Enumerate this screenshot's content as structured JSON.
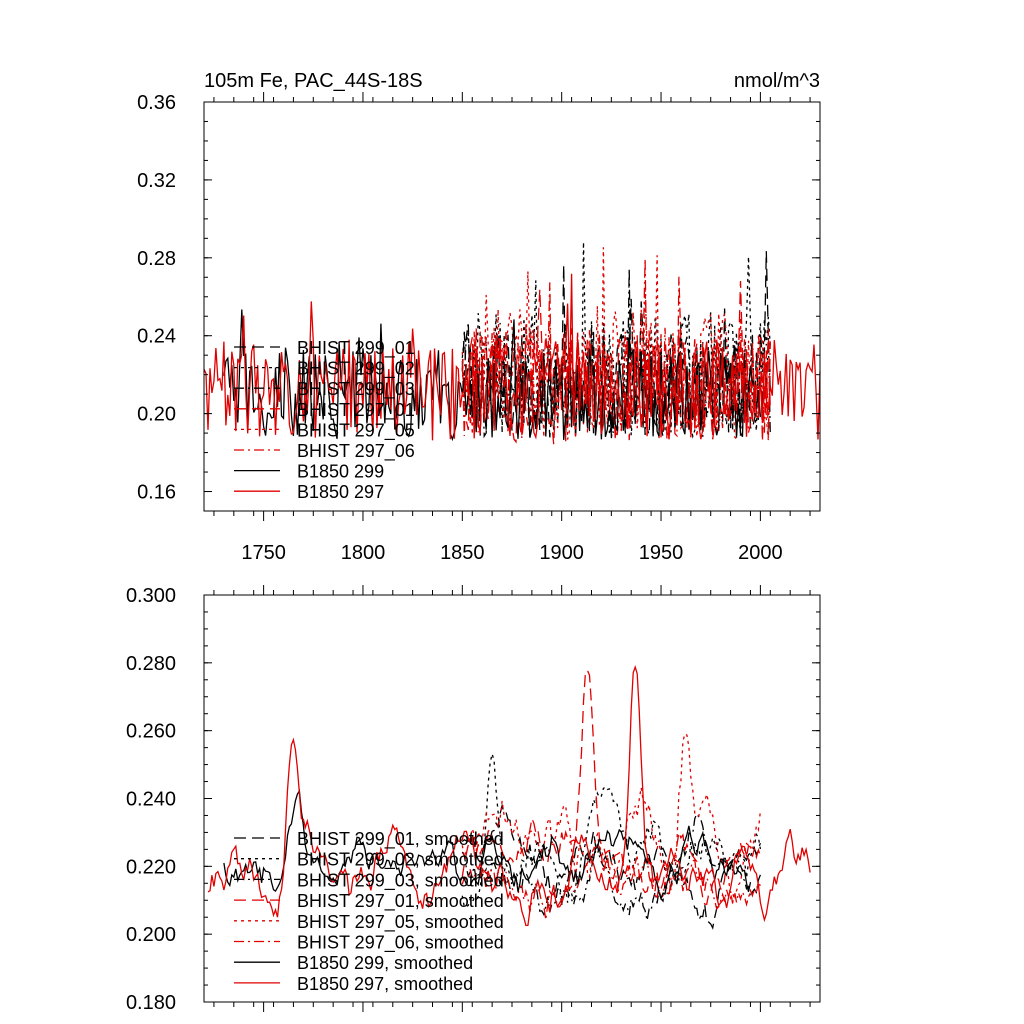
{
  "chart_data": [
    {
      "type": "line",
      "title": "105m Fe, PAC_44S-18S",
      "units": "nmol/m^3",
      "xlim": [
        1720,
        2030
      ],
      "ylim": [
        0.15,
        0.36
      ],
      "yticks": [
        "0.16",
        "0.20",
        "0.24",
        "0.28",
        "0.32",
        "0.36"
      ],
      "ytick_values": [
        0.16,
        0.2,
        0.24,
        0.28,
        0.32,
        0.36
      ],
      "xticks": [
        "1750",
        "1800",
        "1850",
        "1900",
        "1950",
        "2000"
      ],
      "xtick_values": [
        1750,
        1800,
        1850,
        1900,
        1950,
        2000
      ],
      "series": [
        {
          "name": "BHIST 299_01",
          "color": "#000000",
          "dash": "long-dash",
          "x_start": 1850,
          "x_end": 2005,
          "mean": 0.215,
          "amp": 0.028
        },
        {
          "name": "BHIST 299_02",
          "color": "#000000",
          "dash": "dot",
          "x_start": 1850,
          "x_end": 2005,
          "mean": 0.22,
          "amp": 0.032
        },
        {
          "name": "BHIST 299_03",
          "color": "#000000",
          "dash": "dash-dot",
          "x_start": 1850,
          "x_end": 2005,
          "mean": 0.214,
          "amp": 0.026
        },
        {
          "name": "BHIST 297_01",
          "color": "#e00000",
          "dash": "long-dash",
          "x_start": 1850,
          "x_end": 2005,
          "mean": 0.214,
          "amp": 0.03
        },
        {
          "name": "BHIST 297_05",
          "color": "#e00000",
          "dash": "dot",
          "x_start": 1850,
          "x_end": 2005,
          "mean": 0.22,
          "amp": 0.034
        },
        {
          "name": "BHIST 297_06",
          "color": "#e00000",
          "dash": "dash-dot",
          "x_start": 1850,
          "x_end": 2005,
          "mean": 0.216,
          "amp": 0.03
        },
        {
          "name": "B1850 299",
          "color": "#000000",
          "dash": "solid",
          "x_start": 1730,
          "x_end": 2000,
          "mean": 0.21,
          "amp": 0.024
        },
        {
          "name": "B1850 297",
          "color": "#e00000",
          "dash": "solid",
          "x_start": 1720,
          "x_end": 2030,
          "mean": 0.212,
          "amp": 0.026
        }
      ]
    },
    {
      "type": "line",
      "title": "",
      "xlim": [
        1720,
        2030
      ],
      "ylim": [
        0.18,
        0.3
      ],
      "yticks": [
        "0.180",
        "0.200",
        "0.220",
        "0.240",
        "0.260",
        "0.280",
        "0.300"
      ],
      "ytick_values": [
        0.18,
        0.2,
        0.22,
        0.24,
        0.26,
        0.28,
        0.3
      ],
      "xtick_values": [
        1750,
        1800,
        1850,
        1900,
        1950,
        2000
      ],
      "series": [
        {
          "name": "BHIST 299_01, smoothed",
          "color": "#000000",
          "dash": "long-dash",
          "x_start": 1850,
          "x_end": 2000,
          "mean": 0.22,
          "amp": 0.012
        },
        {
          "name": "BHIST 299_02, smoothed",
          "color": "#000000",
          "dash": "dot",
          "x_start": 1850,
          "x_end": 2000,
          "mean": 0.222,
          "amp": 0.014
        },
        {
          "name": "BHIST 299_03, smoothed",
          "color": "#000000",
          "dash": "dash-dot",
          "x_start": 1850,
          "x_end": 2000,
          "mean": 0.219,
          "amp": 0.012
        },
        {
          "name": "BHIST 297_01, smoothed",
          "color": "#e00000",
          "dash": "long-dash",
          "x_start": 1850,
          "x_end": 2000,
          "mean": 0.218,
          "amp": 0.013
        },
        {
          "name": "BHIST 297_05, smoothed",
          "color": "#e00000",
          "dash": "dot",
          "x_start": 1850,
          "x_end": 2000,
          "mean": 0.222,
          "amp": 0.016
        },
        {
          "name": "BHIST 297_06, smoothed",
          "color": "#e00000",
          "dash": "dash-dot",
          "x_start": 1850,
          "x_end": 2000,
          "mean": 0.218,
          "amp": 0.013
        },
        {
          "name": "B1850 299, smoothed",
          "color": "#000000",
          "dash": "solid",
          "x_start": 1730,
          "x_end": 1995,
          "mean": 0.22,
          "amp": 0.011
        },
        {
          "name": "B1850 297, smoothed",
          "color": "#e00000",
          "dash": "solid",
          "x_start": 1722,
          "x_end": 2025,
          "mean": 0.218,
          "amp": 0.013
        }
      ],
      "peaks": [
        {
          "series": "B1850 297, smoothed",
          "x": 1764,
          "y": 0.257
        },
        {
          "series": "B1850 299, smoothed",
          "x": 1766,
          "y": 0.242
        },
        {
          "series": "BHIST 299_02, smoothed",
          "x": 1865,
          "y": 0.259
        },
        {
          "series": "BHIST 297_01, smoothed",
          "x": 1913,
          "y": 0.281
        },
        {
          "series": "B1850 297, smoothed",
          "x": 1937,
          "y": 0.281
        },
        {
          "series": "BHIST 297_05, smoothed",
          "x": 1962,
          "y": 0.263
        }
      ]
    }
  ]
}
